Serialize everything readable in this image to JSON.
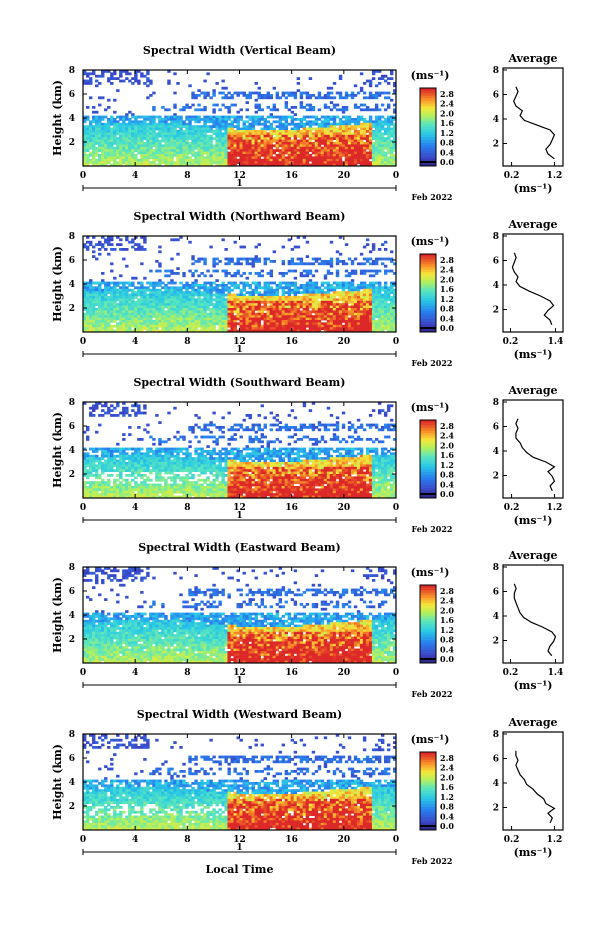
{
  "figure": {
    "xlabel": "Local Time",
    "day_label": "1",
    "month_label": "Feb 2022"
  },
  "chart_data": [
    {
      "type": "heatmap",
      "title": "Spectral Width (Vertical Beam)",
      "ylabel": "Height (km)",
      "xlim": [
        0,
        24
      ],
      "ylim": [
        0,
        8
      ],
      "xticks": [
        "0",
        "4",
        "8",
        "12",
        "16",
        "20",
        "0"
      ],
      "yticks": [
        "2",
        "4",
        "6",
        "8"
      ],
      "colorbar": {
        "unit": "(ms⁻¹)",
        "ticks": [
          "2.8",
          "2.4",
          "2.0",
          "1.6",
          "1.2",
          "0.8",
          "0.4",
          "0.0"
        ],
        "range": [
          0,
          3.0
        ]
      },
      "average": {
        "title": "Average",
        "xticks": [
          "0.2",
          "1.2"
        ],
        "xlim": [
          0,
          1.4
        ],
        "unit": "(ms⁻¹)",
        "heights": [
          0.6,
          1.0,
          1.4,
          1.8,
          2.2,
          2.6,
          3.0,
          3.4,
          3.8,
          4.2,
          4.6,
          5.0,
          5.4,
          5.8,
          6.2,
          6.6
        ],
        "values": [
          1.2,
          1.05,
          1.0,
          1.1,
          1.15,
          1.2,
          1.1,
          0.8,
          0.5,
          0.4,
          0.45,
          0.3,
          0.25,
          0.3,
          0.35,
          0.3
        ]
      }
    },
    {
      "type": "heatmap",
      "title": "Spectral Width (Northward Beam)",
      "ylabel": "Height (km)",
      "xlim": [
        0,
        24
      ],
      "ylim": [
        0,
        8
      ],
      "xticks": [
        "0",
        "4",
        "8",
        "12",
        "16",
        "20",
        "0"
      ],
      "yticks": [
        "2",
        "4",
        "6",
        "8"
      ],
      "colorbar": {
        "unit": "(ms⁻¹)",
        "ticks": [
          "2.8",
          "2.4",
          "2.0",
          "1.6",
          "1.2",
          "0.8",
          "0.4",
          "0.0"
        ],
        "range": [
          0,
          3.0
        ]
      },
      "average": {
        "title": "Average",
        "xticks": [
          "0.2",
          "1.4"
        ],
        "xlim": [
          0,
          1.6
        ],
        "unit": "(ms⁻¹)",
        "heights": [
          0.6,
          1.0,
          1.4,
          1.8,
          2.2,
          2.6,
          3.0,
          3.4,
          3.8,
          4.2,
          4.6,
          5.0,
          5.4,
          5.8,
          6.2,
          6.6
        ],
        "values": [
          1.3,
          1.25,
          1.1,
          1.2,
          1.35,
          1.25,
          1.0,
          0.7,
          0.45,
          0.35,
          0.4,
          0.3,
          0.25,
          0.3,
          0.35,
          0.3
        ]
      }
    },
    {
      "type": "heatmap",
      "title": "Spectral Width (Southward Beam)",
      "ylabel": "Height (km)",
      "xlim": [
        0,
        24
      ],
      "ylim": [
        0,
        8
      ],
      "xticks": [
        "0",
        "4",
        "8",
        "12",
        "16",
        "20",
        "0"
      ],
      "yticks": [
        "2",
        "4",
        "6",
        "8"
      ],
      "colorbar": {
        "unit": "(ms⁻¹)",
        "ticks": [
          "2.8",
          "2.4",
          "2.0",
          "1.6",
          "1.2",
          "0.8",
          "0.4",
          "0.0"
        ],
        "range": [
          0,
          3.0
        ]
      },
      "average": {
        "title": "Average",
        "xticks": [
          "0.2",
          "1.2"
        ],
        "xlim": [
          0,
          1.4
        ],
        "unit": "(ms⁻¹)",
        "heights": [
          0.6,
          1.0,
          1.4,
          1.8,
          2.2,
          2.6,
          3.0,
          3.4,
          3.8,
          4.2,
          4.6,
          5.0,
          5.4,
          5.8,
          6.2,
          6.6
        ],
        "values": [
          1.15,
          1.1,
          1.2,
          1.15,
          1.05,
          1.2,
          1.0,
          0.7,
          0.55,
          0.45,
          0.4,
          0.3,
          0.3,
          0.35,
          0.3,
          0.35
        ]
      }
    },
    {
      "type": "heatmap",
      "title": "Spectral Width (Eastward Beam)",
      "ylabel": "Height (km)",
      "xlim": [
        0,
        24
      ],
      "ylim": [
        0,
        8
      ],
      "xticks": [
        "0",
        "4",
        "8",
        "12",
        "16",
        "20",
        "0"
      ],
      "yticks": [
        "2",
        "4",
        "6",
        "8"
      ],
      "colorbar": {
        "unit": "(ms⁻¹)",
        "ticks": [
          "2.8",
          "2.4",
          "2.0",
          "1.6",
          "1.2",
          "0.8",
          "0.4",
          "0.0"
        ],
        "range": [
          0,
          3.0
        ]
      },
      "average": {
        "title": "Average",
        "xticks": [
          "0.2",
          "1.4"
        ],
        "xlim": [
          0,
          1.6
        ],
        "unit": "(ms⁻¹)",
        "heights": [
          0.6,
          1.0,
          1.4,
          1.8,
          2.2,
          2.6,
          3.0,
          3.4,
          3.8,
          4.2,
          4.6,
          5.0,
          5.4,
          5.8,
          6.2,
          6.6
        ],
        "values": [
          1.3,
          1.2,
          1.25,
          1.35,
          1.4,
          1.3,
          1.05,
          0.75,
          0.55,
          0.45,
          0.4,
          0.35,
          0.3,
          0.3,
          0.35,
          0.3
        ]
      }
    },
    {
      "type": "heatmap",
      "title": "Spectral Width (Westward Beam)",
      "ylabel": "Height (km)",
      "xlim": [
        0,
        24
      ],
      "ylim": [
        0,
        8
      ],
      "xticks": [
        "0",
        "4",
        "8",
        "12",
        "16",
        "20",
        "0"
      ],
      "yticks": [
        "2",
        "4",
        "6",
        "8"
      ],
      "colorbar": {
        "unit": "(ms⁻¹)",
        "ticks": [
          "2.8",
          "2.4",
          "2.0",
          "1.6",
          "1.2",
          "0.8",
          "0.4",
          "0.0"
        ],
        "range": [
          0,
          3.0
        ]
      },
      "average": {
        "title": "Average",
        "xticks": [
          "0.2",
          "1.2"
        ],
        "xlim": [
          0,
          1.4
        ],
        "unit": "(ms⁻¹)",
        "heights": [
          0.6,
          1.0,
          1.4,
          1.8,
          2.2,
          2.6,
          3.0,
          3.4,
          3.8,
          4.2,
          4.6,
          5.0,
          5.4,
          5.8,
          6.2,
          6.6
        ],
        "values": [
          1.1,
          1.15,
          1.05,
          1.2,
          1.0,
          0.95,
          0.8,
          0.7,
          0.55,
          0.5,
          0.4,
          0.35,
          0.3,
          0.35,
          0.3,
          0.3
        ]
      }
    }
  ]
}
